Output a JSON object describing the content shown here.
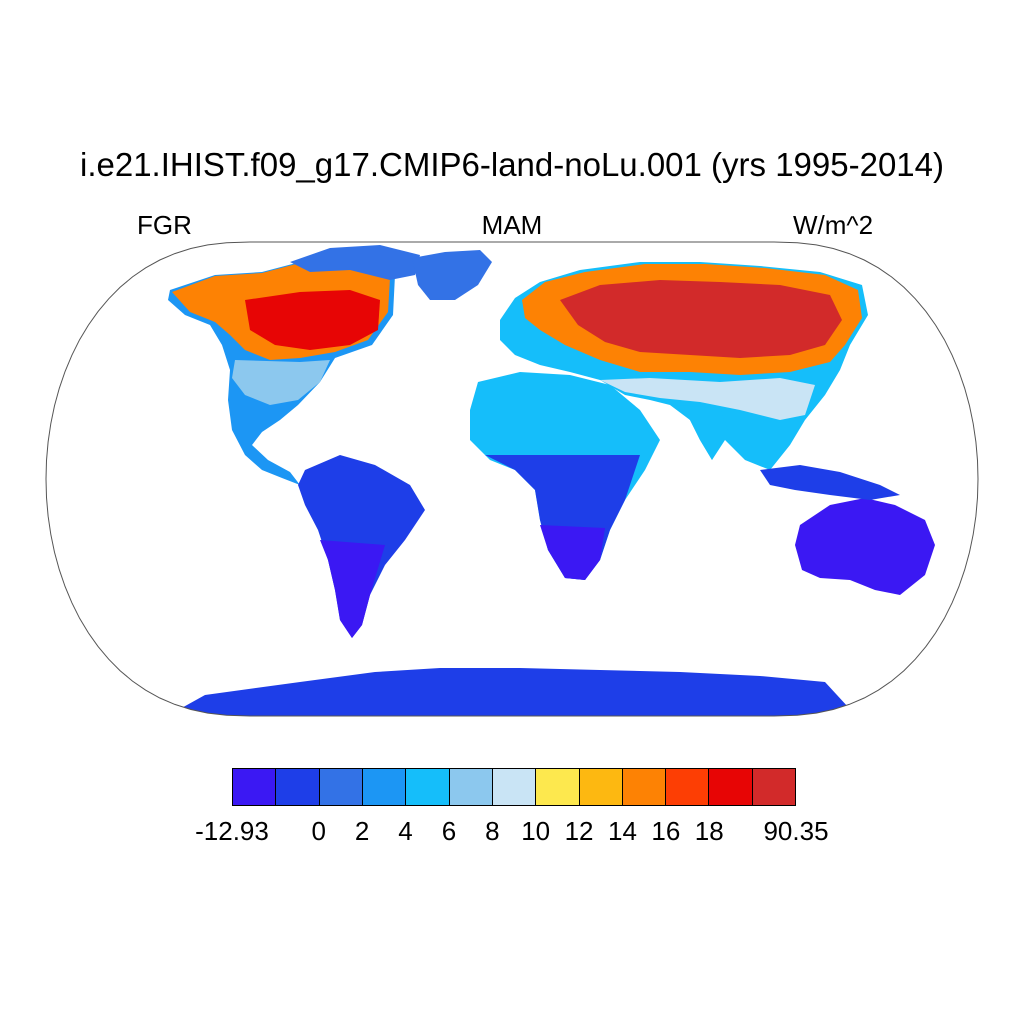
{
  "header": {
    "title": "i.e21.IHIST.f09_g17.CMIP6-land-noLu.001 (yrs 1995-2014)",
    "variable": "FGR",
    "season": "MAM",
    "units": "W/m^2"
  },
  "map": {
    "projection": "robinson",
    "background_color": "#ffffff",
    "outline_color": "#555555"
  },
  "colorbar": {
    "colors": [
      "#3b18f3",
      "#1e3ee8",
      "#3372e6",
      "#1c96f4",
      "#15befa",
      "#8cc8ee",
      "#c9e4f5",
      "#fde84e",
      "#fdb811",
      "#fd8204",
      "#fd3e04",
      "#e70505",
      "#d22a2a"
    ],
    "tick_labels": [
      "-12.93",
      "0",
      "2",
      "4",
      "6",
      "8",
      "10",
      "12",
      "14",
      "16",
      "18",
      "90.35"
    ]
  }
}
